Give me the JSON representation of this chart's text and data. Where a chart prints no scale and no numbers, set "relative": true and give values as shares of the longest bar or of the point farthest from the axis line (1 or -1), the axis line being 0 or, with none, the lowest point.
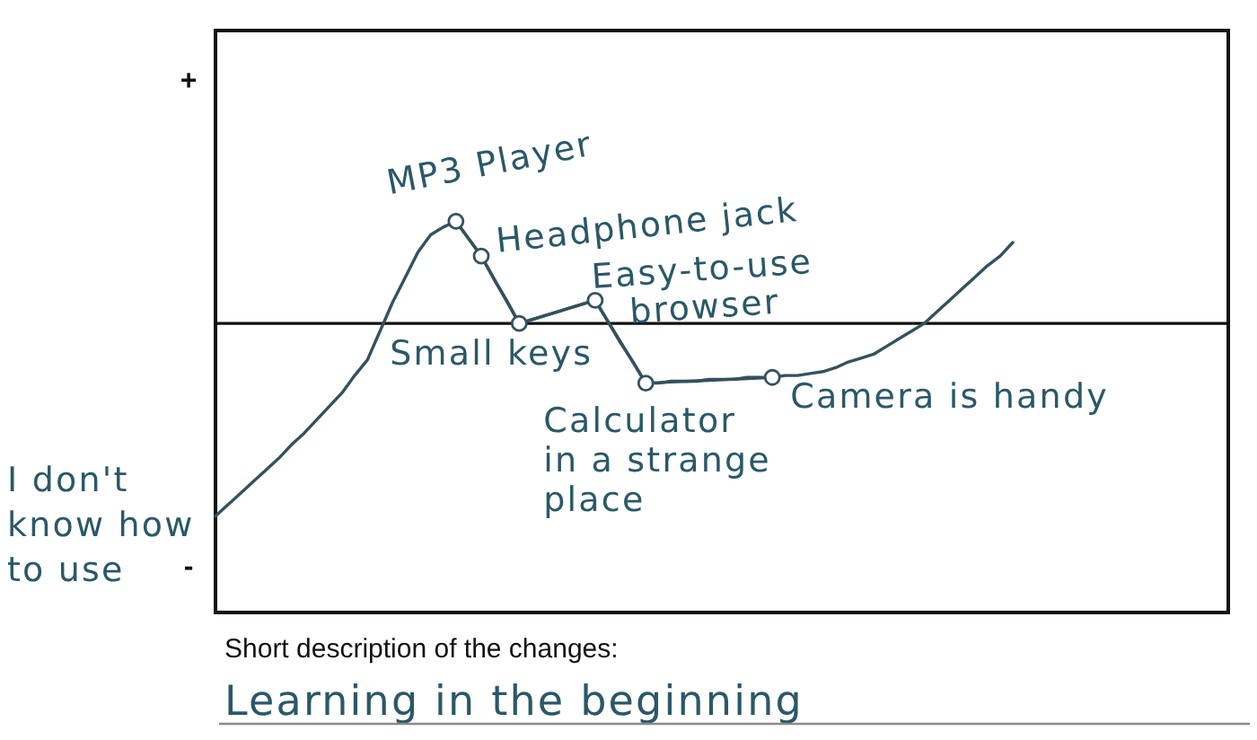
{
  "chart_data": {
    "type": "line",
    "relative": true,
    "categories": [
      null,
      null,
      null,
      null,
      null,
      null,
      null,
      null,
      null,
      null,
      null,
      null,
      null,
      null,
      null,
      null,
      null,
      null,
      null,
      null,
      null,
      null,
      null,
      null,
      null,
      null,
      null,
      null,
      null,
      null,
      null,
      null,
      null,
      null,
      null,
      null,
      null,
      null,
      null,
      null,
      null,
      null,
      null,
      null,
      null,
      null,
      null,
      null,
      null,
      null,
      null,
      null,
      null,
      null,
      null,
      null,
      null,
      null,
      null,
      null,
      null,
      null,
      null,
      null
    ],
    "series": [
      {
        "color": "#34525c",
        "values": [
          -1,
          -0.94,
          -0.88,
          -0.82,
          -0.76,
          -0.7,
          -0.63,
          -0.57,
          -0.5,
          -0.43,
          -0.36,
          -0.27,
          -0.19,
          -0.04,
          0.11,
          0.24,
          0.37,
          0.46,
          0.5,
          0.53,
          0.44,
          0.35,
          0.23,
          0.12,
          0,
          0.02,
          0.04,
          0.06,
          0.08,
          0.1,
          0.12,
          0.01,
          -0.1,
          -0.2,
          -0.31,
          -0.31,
          -0.3,
          -0.3,
          -0.3,
          -0.29,
          -0.29,
          -0.29,
          -0.28,
          -0.28,
          -0.28,
          -0.27,
          -0.27,
          -0.26,
          -0.25,
          -0.23,
          -0.2,
          -0.18,
          -0.16,
          -0.12,
          -0.08,
          -0.04,
          0,
          0.06,
          0.12,
          0.18,
          0.24,
          0.3,
          0.35,
          0.42
        ]
      },
      {
        "color": "#34525c",
        "marker": "circle",
        "values": [
          null,
          null,
          null,
          null,
          null,
          null,
          null,
          null,
          null,
          null,
          null,
          null,
          null,
          null,
          null,
          null,
          null,
          null,
          null,
          0.53,
          null,
          0.35,
          null,
          null,
          0,
          null,
          null,
          null,
          null,
          null,
          0.12,
          null,
          null,
          null,
          -0.31,
          null,
          null,
          null,
          null,
          null,
          null,
          null,
          null,
          null,
          -0.28,
          null,
          null,
          null,
          null,
          null,
          null,
          null,
          null,
          null,
          null,
          null,
          null,
          null,
          null,
          null,
          null,
          null,
          null,
          null
        ]
      }
    ],
    "annotations": [
      "MP3 Player",
      "Headphone jack",
      "Small keys",
      "Easy-to-use browser",
      "Calculator in a strange place",
      "Camera is handy",
      "I don't know how to use",
      "+",
      "-",
      "Short description of the changes:",
      "Learning in the beginning"
    ]
  }
}
